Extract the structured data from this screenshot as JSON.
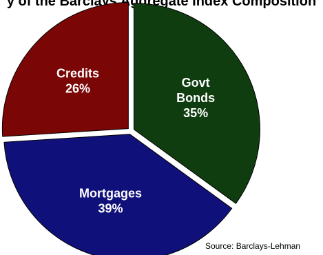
{
  "title": "y   of the Barclays Aggregate Index Composition",
  "source": "Source:  Barclays-Lehman",
  "chart_data": {
    "type": "pie",
    "title": "y   of the Barclays Aggregate Index Composition",
    "slices": [
      {
        "name": "Govt Bonds",
        "label_lines": [
          "Govt",
          "Bonds"
        ],
        "pct_label": "35%",
        "value": 35,
        "color": "#0f3d0f"
      },
      {
        "name": "Mortgages",
        "label_lines": [
          "Mortgages"
        ],
        "pct_label": "39%",
        "value": 39,
        "color": "#10107a"
      },
      {
        "name": "Credits",
        "label_lines": [
          "Credits"
        ],
        "pct_label": "26%",
        "value": 26,
        "color": "#7a0606"
      }
    ],
    "legend": "none"
  }
}
